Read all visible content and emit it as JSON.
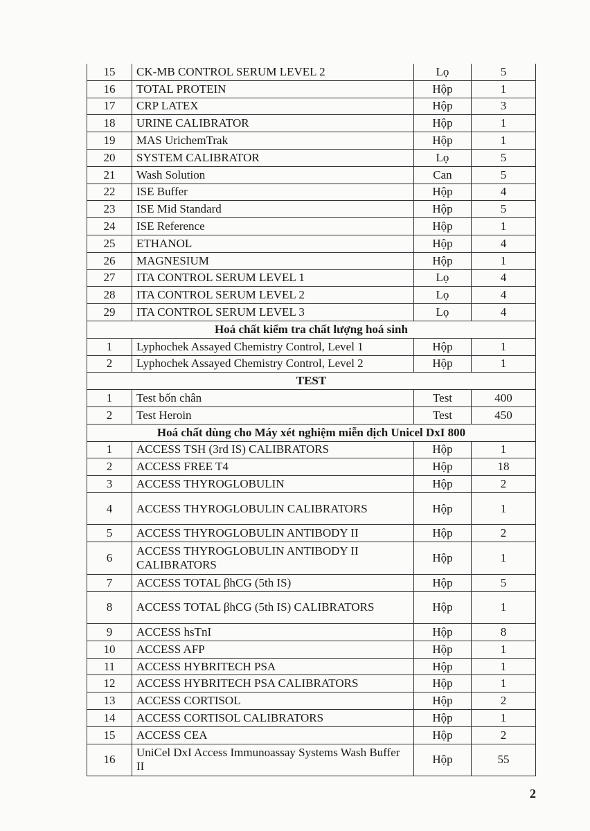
{
  "rows": [
    {
      "type": "item",
      "no": "15",
      "name": "CK-MB CONTROL SERUM LEVEL 2",
      "unit": "Lọ",
      "qty": "5"
    },
    {
      "type": "item",
      "no": "16",
      "name": "TOTAL PROTEIN",
      "unit": "Hộp",
      "qty": "1"
    },
    {
      "type": "item",
      "no": "17",
      "name": "CRP LATEX",
      "unit": "Hộp",
      "qty": "3"
    },
    {
      "type": "item",
      "no": "18",
      "name": "URINE CALIBRATOR",
      "unit": "Hộp",
      "qty": "1"
    },
    {
      "type": "item",
      "no": "19",
      "name": "MAS UrichemTrak",
      "unit": "Hộp",
      "qty": "1"
    },
    {
      "type": "item",
      "no": "20",
      "name": "SYSTEM CALIBRATOR",
      "unit": "Lọ",
      "qty": "5"
    },
    {
      "type": "item",
      "no": "21",
      "name": "Wash Solution",
      "unit": "Can",
      "qty": "5"
    },
    {
      "type": "item",
      "no": "22",
      "name": "ISE Buffer",
      "unit": "Hộp",
      "qty": "4"
    },
    {
      "type": "item",
      "no": "23",
      "name": "ISE Mid Standard",
      "unit": "Hộp",
      "qty": "5"
    },
    {
      "type": "item",
      "no": "24",
      "name": "ISE Reference",
      "unit": "Hộp",
      "qty": "1"
    },
    {
      "type": "item",
      "no": "25",
      "name": "ETHANOL",
      "unit": "Hộp",
      "qty": "4"
    },
    {
      "type": "item",
      "no": "26",
      "name": "MAGNESIUM",
      "unit": "Hộp",
      "qty": "1"
    },
    {
      "type": "item",
      "no": "27",
      "name": "ITA CONTROL SERUM LEVEL 1",
      "unit": "Lọ",
      "qty": "4"
    },
    {
      "type": "item",
      "no": "28",
      "name": "ITA CONTROL SERUM LEVEL 2",
      "unit": "Lọ",
      "qty": "4"
    },
    {
      "type": "item",
      "no": "29",
      "name": "ITA CONTROL SERUM LEVEL 3",
      "unit": "Lọ",
      "qty": "4"
    },
    {
      "type": "section",
      "title": "Hoá chất kiểm tra chất lượng hoá sinh"
    },
    {
      "type": "item",
      "no": "1",
      "name": "Lyphochek Assayed Chemistry Control, Level 1",
      "unit": "Hộp",
      "qty": "1"
    },
    {
      "type": "item",
      "no": "2",
      "name": "Lyphochek Assayed Chemistry Control, Level 2",
      "unit": "Hộp",
      "qty": "1"
    },
    {
      "type": "section",
      "title": "TEST"
    },
    {
      "type": "item",
      "no": "1",
      "name": "Test bốn chân",
      "unit": "Test",
      "qty": "400"
    },
    {
      "type": "item",
      "no": "2",
      "name": "Test Heroin",
      "unit": "Test",
      "qty": "450"
    },
    {
      "type": "section",
      "title": "Hoá chất dùng cho Máy xét nghiệm miễn dịch Unicel DxI 800"
    },
    {
      "type": "item",
      "no": "1",
      "name": "ACCESS TSH (3rd IS) CALIBRATORS",
      "unit": "Hộp",
      "qty": "1"
    },
    {
      "type": "item",
      "no": "2",
      "name": "ACCESS FREE T4",
      "unit": "Hộp",
      "qty": "18"
    },
    {
      "type": "item",
      "no": "3",
      "name": "ACCESS THYROGLOBULIN",
      "unit": "Hộp",
      "qty": "2"
    },
    {
      "type": "item",
      "no": "4",
      "name": "ACCESS THYROGLOBULIN CALIBRATORS",
      "unit": "Hộp",
      "qty": "1",
      "double": true
    },
    {
      "type": "item",
      "no": "5",
      "name": "ACCESS THYROGLOBULIN ANTIBODY II",
      "unit": "Hộp",
      "qty": "2"
    },
    {
      "type": "item",
      "no": "6",
      "name": "ACCESS THYROGLOBULIN ANTIBODY II CALIBRATORS",
      "unit": "Hộp",
      "qty": "1",
      "double": true
    },
    {
      "type": "item",
      "no": "7",
      "name": "ACCESS TOTAL βhCG (5th IS)",
      "unit": "Hộp",
      "qty": "5"
    },
    {
      "type": "item",
      "no": "8",
      "name": "ACCESS TOTAL βhCG (5th IS) CALIBRATORS",
      "unit": "Hộp",
      "qty": "1",
      "double": true
    },
    {
      "type": "item",
      "no": "9",
      "name": "ACCESS hsTnI",
      "unit": "Hộp",
      "qty": "8"
    },
    {
      "type": "item",
      "no": "10",
      "name": "ACCESS AFP",
      "unit": "Hộp",
      "qty": "1"
    },
    {
      "type": "item",
      "no": "11",
      "name": "ACCESS HYBRITECH PSA",
      "unit": "Hộp",
      "qty": "1"
    },
    {
      "type": "item",
      "no": "12",
      "name": "ACCESS HYBRITECH PSA CALIBRATORS",
      "unit": "Hộp",
      "qty": "1"
    },
    {
      "type": "item",
      "no": "13",
      "name": "ACCESS CORTISOL",
      "unit": "Hộp",
      "qty": "2"
    },
    {
      "type": "item",
      "no": "14",
      "name": "ACCESS CORTISOL CALIBRATORS",
      "unit": "Hộp",
      "qty": "1"
    },
    {
      "type": "item",
      "no": "15",
      "name": "ACCESS CEA",
      "unit": "Hộp",
      "qty": "2"
    },
    {
      "type": "item",
      "no": "16",
      "name": "UniCel DxI Access Immunoassay Systems Wash Buffer II",
      "unit": "Hộp",
      "qty": "55",
      "double": true
    }
  ],
  "page_number": "2"
}
